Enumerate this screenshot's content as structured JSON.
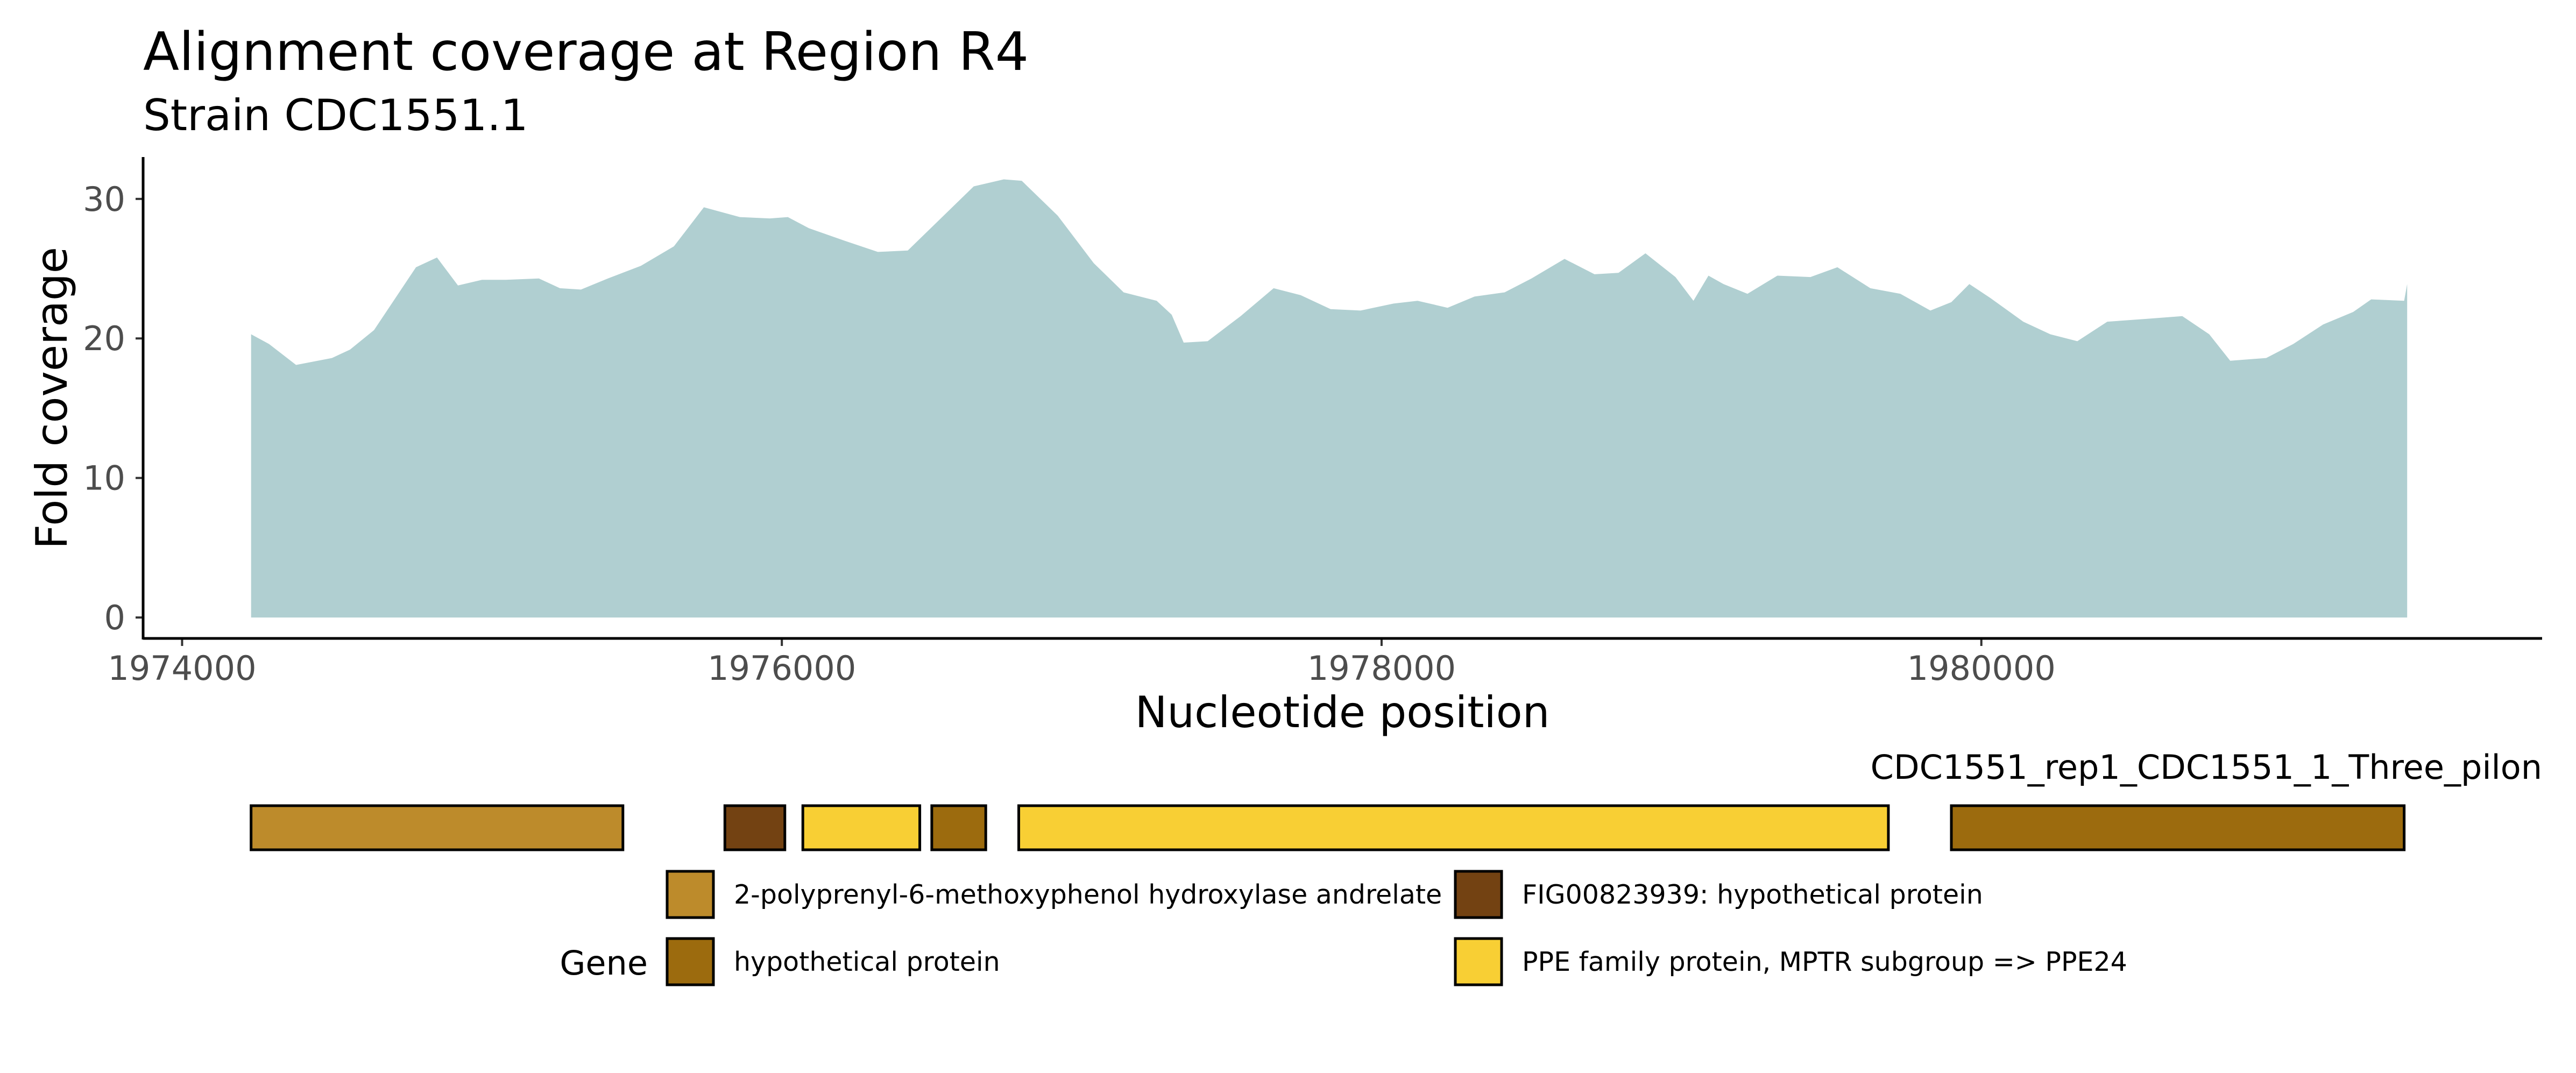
{
  "chart_data": {
    "type": "area",
    "title": "Alignment coverage at Region R4",
    "subtitle": "Strain CDC1551.1",
    "xlabel": "Nucleotide position",
    "ylabel": "Fold coverage",
    "xlim": [
      1973870,
      1981870
    ],
    "ylim": [
      -1.5,
      33
    ],
    "x_ticks": [
      1974000,
      1976000,
      1978000,
      1980000
    ],
    "x_tick_labels": [
      "1974000",
      "1976000",
      "1978000",
      "1980000"
    ],
    "y_ticks": [
      0,
      10,
      20,
      30
    ],
    "y_tick_labels": [
      "0",
      "10",
      "20",
      "30"
    ],
    "grid": false,
    "fill_color": "#b0cfd1",
    "series": [
      {
        "x": [
          1974230,
          1974290,
          1974380,
          1974500,
          1974560,
          1974640,
          1974780,
          1974850,
          1974920,
          1975000,
          1975080,
          1975190,
          1975260,
          1975330,
          1975420,
          1975530,
          1975640,
          1975740,
          1975860,
          1975960,
          1976020,
          1976090,
          1976210,
          1976320,
          1976420,
          1976530,
          1976640,
          1976740,
          1976800,
          1976920,
          1977040,
          1977140,
          1977250,
          1977300,
          1977340,
          1977420,
          1977530,
          1977640,
          1977730,
          1977830,
          1977930,
          1978040,
          1978120,
          1978220,
          1978310,
          1978410,
          1978500,
          1978610,
          1978710,
          1978790,
          1978880,
          1978980,
          1979040,
          1979090,
          1979140,
          1979220,
          1979320,
          1979430,
          1979520,
          1979630,
          1979730,
          1979830,
          1979900,
          1979960,
          1980030,
          1980140,
          1980230,
          1980320,
          1980420,
          1980550,
          1980670,
          1980760,
          1980830,
          1980950,
          1981040,
          1981140,
          1981240,
          1981300,
          1981410,
          1981420
        ],
        "y": [
          20.3,
          19.6,
          18.1,
          18.6,
          19.2,
          20.6,
          25.1,
          25.8,
          23.8,
          24.2,
          24.2,
          24.3,
          23.6,
          23.5,
          24.3,
          25.2,
          26.6,
          29.4,
          28.7,
          28.6,
          28.7,
          27.9,
          27.0,
          26.2,
          26.3,
          28.6,
          30.9,
          31.4,
          31.3,
          28.8,
          25.4,
          23.3,
          22.7,
          21.7,
          19.7,
          19.8,
          21.6,
          23.6,
          23.1,
          22.1,
          22.0,
          22.5,
          22.7,
          22.2,
          23.0,
          23.3,
          24.3,
          25.7,
          24.6,
          24.7,
          26.1,
          24.4,
          22.7,
          24.5,
          23.9,
          23.2,
          24.5,
          24.4,
          25.1,
          23.6,
          23.2,
          22.0,
          22.6,
          23.9,
          22.9,
          21.2,
          20.3,
          19.8,
          21.2,
          21.4,
          21.6,
          20.3,
          18.4,
          18.6,
          19.6,
          21.0,
          21.9,
          22.8,
          22.7,
          23.9
        ]
      }
    ],
    "gene_track": {
      "contig_label": "CDC1551_rep1_CDC1551_1_Three_pilon",
      "genes": [
        {
          "start": 1974230,
          "end": 1975470,
          "product": "2-polyprenyl-6-methoxyphenol hydroxylase andrelate"
        },
        {
          "start": 1975810,
          "end": 1976010,
          "product": "FIG00823939: hypothetical protein"
        },
        {
          "start": 1976070,
          "end": 1976460,
          "product": "PPE family protein, MPTR subgroup => PPE24"
        },
        {
          "start": 1976500,
          "end": 1976680,
          "product": "hypothetical protein"
        },
        {
          "start": 1976790,
          "end": 1979690,
          "product": "PPE family protein, MPTR subgroup => PPE24"
        },
        {
          "start": 1979900,
          "end": 1981410,
          "product": "hypothetical protein"
        }
      ]
    },
    "legend": {
      "title": "Gene",
      "placement": "bottom",
      "entries": [
        {
          "label": "2-polyprenyl-6-methoxyphenol hydroxylase andrelate",
          "color": "#bd8b2b"
        },
        {
          "label": "FIG00823939: hypothetical protein",
          "color": "#734212"
        },
        {
          "label": "hypothetical protein",
          "color": "#9c6b0e"
        },
        {
          "label": "PPE family protein, MPTR subgroup => PPE24",
          "color": "#f8cf34"
        }
      ]
    }
  }
}
